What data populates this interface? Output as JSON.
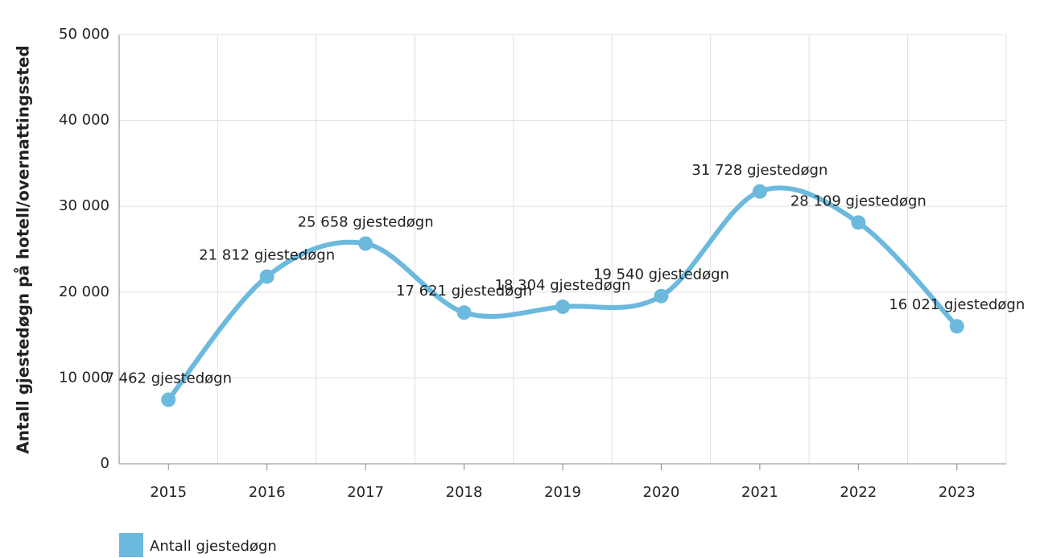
{
  "chart_data": {
    "type": "line",
    "y_label": "Antall gjestedøgn på hotell/overnattingssted",
    "categories": [
      "2015",
      "2016",
      "2017",
      "2018",
      "2019",
      "2020",
      "2021",
      "2022",
      "2023"
    ],
    "series": [
      {
        "name": "Antall gjestedøgn",
        "color": "#6cb9de",
        "values": [
          7462,
          21812,
          25658,
          17621,
          18304,
          19540,
          31728,
          28109,
          16021
        ],
        "value_labels": [
          "7 462 gjestedøgn",
          "21 812 gjestedøgn",
          "25 658 gjestedøgn",
          "17 621 gjestedøgn",
          "18 304 gjestedøgn",
          "19 540 gjestedøgn",
          "31 728 gjestedøgn",
          "28 109 gjestedøgn",
          "16 021 gjestedøgn"
        ]
      }
    ],
    "ylim": [
      0,
      50000
    ],
    "yticks": [
      0,
      {
        "value": 10000,
        "label": "10 000"
      },
      {
        "value": 20000,
        "label": "20 000"
      },
      {
        "value": 30000,
        "label": "30 000"
      },
      {
        "value": 40000,
        "label": "40 000"
      },
      {
        "value": 50000,
        "label": "50 000"
      }
    ],
    "grid": true,
    "legend": "bottom-left"
  }
}
